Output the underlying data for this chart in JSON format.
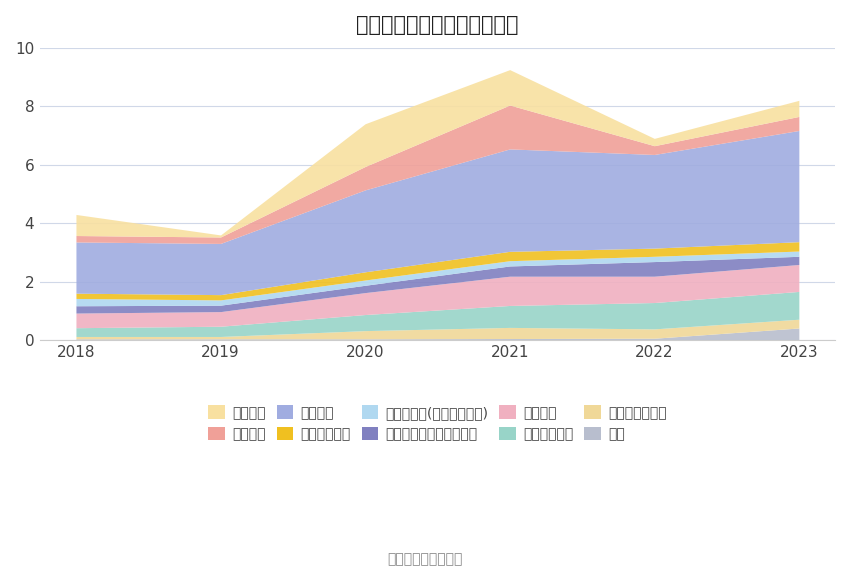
{
  "title": "历年主要负债堆积图（亿元）",
  "source": "数据来源：恒生聚源",
  "years": [
    2018,
    2019,
    2020,
    2021,
    2022,
    2023
  ],
  "series": [
    {
      "name": "其它",
      "color": "#b8bece",
      "values": [
        0.05,
        0.05,
        0.05,
        0.06,
        0.07,
        0.42
      ]
    },
    {
      "name": "递延所得税负债",
      "color": "#f0d898",
      "values": [
        0.08,
        0.08,
        0.28,
        0.38,
        0.32,
        0.3
      ]
    },
    {
      "name": "长期递延收益",
      "color": "#98d4c8",
      "values": [
        0.3,
        0.35,
        0.55,
        0.75,
        0.9,
        0.95
      ]
    },
    {
      "name": "长期借款",
      "color": "#f0b0c0",
      "values": [
        0.5,
        0.5,
        0.75,
        1.0,
        0.9,
        0.92
      ]
    },
    {
      "name": "一年内到期的非流动负债",
      "color": "#8080c0",
      "values": [
        0.25,
        0.22,
        0.25,
        0.35,
        0.5,
        0.28
      ]
    },
    {
      "name": "其他应付款(含利息和股利)",
      "color": "#b0d8f0",
      "values": [
        0.25,
        0.18,
        0.18,
        0.18,
        0.18,
        0.18
      ]
    },
    {
      "name": "应付职工薪酬",
      "color": "#f0c020",
      "values": [
        0.18,
        0.18,
        0.28,
        0.32,
        0.28,
        0.32
      ]
    },
    {
      "name": "应付账款",
      "color": "#a0ace0",
      "values": [
        1.75,
        1.75,
        2.8,
        3.5,
        3.2,
        3.8
      ]
    },
    {
      "name": "应付票据",
      "color": "#f0a098",
      "values": [
        0.22,
        0.22,
        0.8,
        1.5,
        0.3,
        0.48
      ]
    },
    {
      "name": "短期借款",
      "color": "#f8e0a0",
      "values": [
        0.72,
        0.07,
        1.46,
        1.21,
        0.25,
        0.55
      ]
    }
  ],
  "ylim": [
    0,
    10
  ],
  "yticks": [
    0,
    2,
    4,
    6,
    8,
    10
  ],
  "background_color": "#ffffff",
  "grid_color": "#d0d8e8",
  "title_fontsize": 15,
  "tick_fontsize": 11,
  "legend_fontsize": 10,
  "legend_order": [
    "短期借款",
    "应付票据",
    "应付账款",
    "应付职工薪酬",
    "其他应付款(含利息和股利)",
    "一年内到期的非流动负债",
    "长期借款",
    "长期递延收益",
    "递延所得税负债",
    "其它"
  ]
}
